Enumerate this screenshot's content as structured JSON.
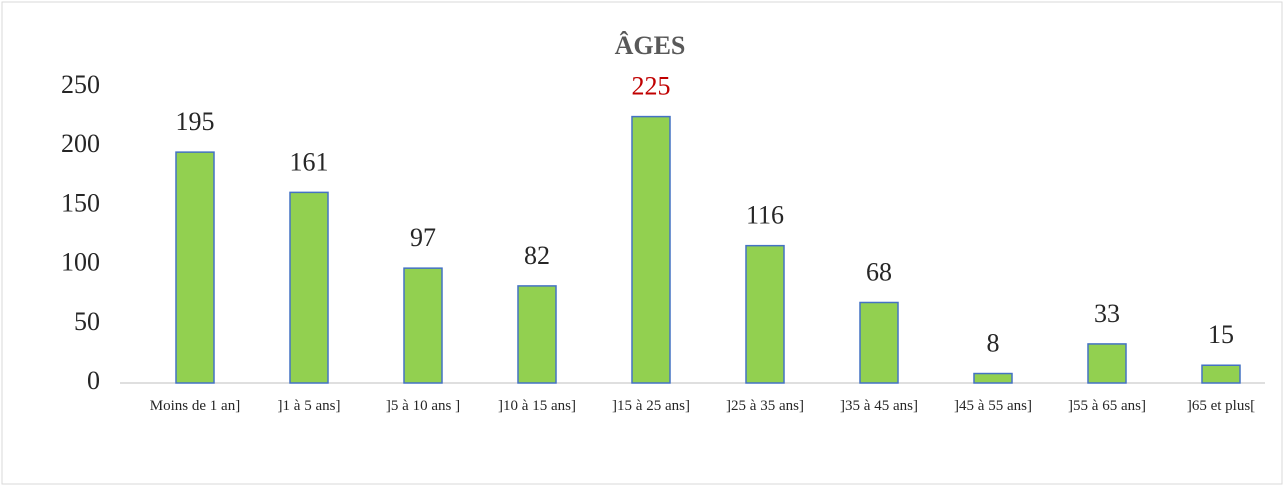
{
  "chart_data": {
    "type": "bar",
    "title": "ÂGES",
    "categories": [
      "Moins de 1 an]",
      "]1 à 5 ans]",
      "]5 à 10 ans ]",
      "]10 à 15 ans]",
      "]15 à 25 ans]",
      "]25 à 35 ans]",
      "]35 à 45 ans]",
      "]45 à 55 ans]",
      "]55 à 65 ans]",
      "]65 et plus["
    ],
    "values": [
      195,
      161,
      97,
      82,
      225,
      116,
      68,
      8,
      33,
      15
    ],
    "value_label_colors": [
      "#262626",
      "#262626",
      "#262626",
      "#262626",
      "#c00000",
      "#262626",
      "#262626",
      "#262626",
      "#262626",
      "#262626"
    ],
    "color": "#92d050",
    "edge_color": "#4472c4",
    "ylim": [
      0,
      250
    ],
    "yticks": [
      0,
      50,
      100,
      150,
      200,
      250
    ],
    "grid": false
  }
}
